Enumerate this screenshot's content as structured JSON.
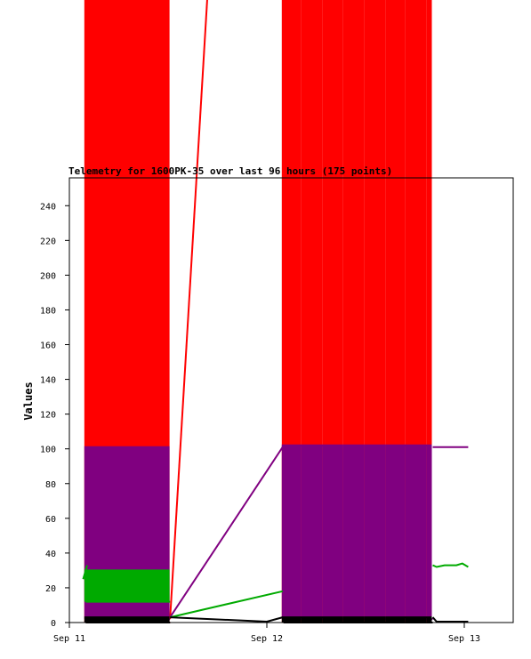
{
  "chart_data": {
    "type": "line",
    "title": "Telemetry for 1600PK-35 over last 96 hours (175 points)",
    "xlabel": "",
    "ylabel": "Values",
    "ylim": [
      0,
      255
    ],
    "xlim": [
      0,
      2.28
    ],
    "x_ticks": [
      {
        "x": 0,
        "label": "Sep 11"
      },
      {
        "x": 1,
        "label": "Sep 12"
      },
      {
        "x": 2,
        "label": "Sep 13"
      }
    ],
    "y_ticks": [
      0,
      20,
      40,
      60,
      80,
      100,
      120,
      140,
      160,
      180,
      200,
      220,
      240
    ],
    "grid": false,
    "series": [
      {
        "color": "#ff0000",
        "style": "spikes",
        "values_range": [
          0,
          400
        ],
        "clusters": [
          {
            "x_start": 0.08,
            "x_end": 0.51,
            "count": 30,
            "low": 0,
            "high": 400
          },
          {
            "x_start": 1.08,
            "x_end": 1.84,
            "count": 42,
            "low": 0,
            "high": 400
          }
        ],
        "connector": [
          [
            0.51,
            2
          ],
          [
            0.72,
            400
          ]
        ]
      },
      {
        "color": "#800080",
        "style": "spikes",
        "clusters": [
          {
            "x_start": 0.08,
            "x_end": 0.51,
            "count": 30,
            "low": 2,
            "high": 101
          },
          {
            "x_start": 1.08,
            "x_end": 1.84,
            "count": 42,
            "low": 2,
            "high": 102
          }
        ],
        "connector": [
          [
            0.51,
            3
          ],
          [
            1.08,
            101
          ]
        ],
        "tail": [
          [
            1.84,
            101
          ],
          [
            2.02,
            101
          ]
        ]
      },
      {
        "color": "#00aa00",
        "style": "spikes",
        "clusters": [
          {
            "x_start": 0.08,
            "x_end": 0.51,
            "count": 30,
            "low": 12,
            "high": 30
          }
        ],
        "lead": [
          [
            0.07,
            25
          ],
          [
            0.09,
            33
          ]
        ],
        "connector": [
          [
            0.51,
            3
          ],
          [
            1.08,
            18
          ]
        ],
        "tail": [
          [
            1.84,
            33
          ],
          [
            1.86,
            32
          ],
          [
            1.9,
            33
          ],
          [
            1.96,
            33
          ],
          [
            1.99,
            34
          ],
          [
            2.02,
            32
          ]
        ]
      },
      {
        "color": "#000000",
        "style": "spikes",
        "clusters": [
          {
            "x_start": 0.08,
            "x_end": 0.51,
            "count": 30,
            "low": 0,
            "high": 3
          },
          {
            "x_start": 1.08,
            "x_end": 1.84,
            "count": 42,
            "low": 0,
            "high": 3
          }
        ],
        "connector": [
          [
            0.51,
            3
          ],
          [
            1.0,
            0.5
          ],
          [
            1.08,
            3
          ]
        ],
        "tail": [
          [
            1.84,
            3
          ],
          [
            1.86,
            0.5
          ],
          [
            2.02,
            0.5
          ]
        ]
      }
    ]
  }
}
